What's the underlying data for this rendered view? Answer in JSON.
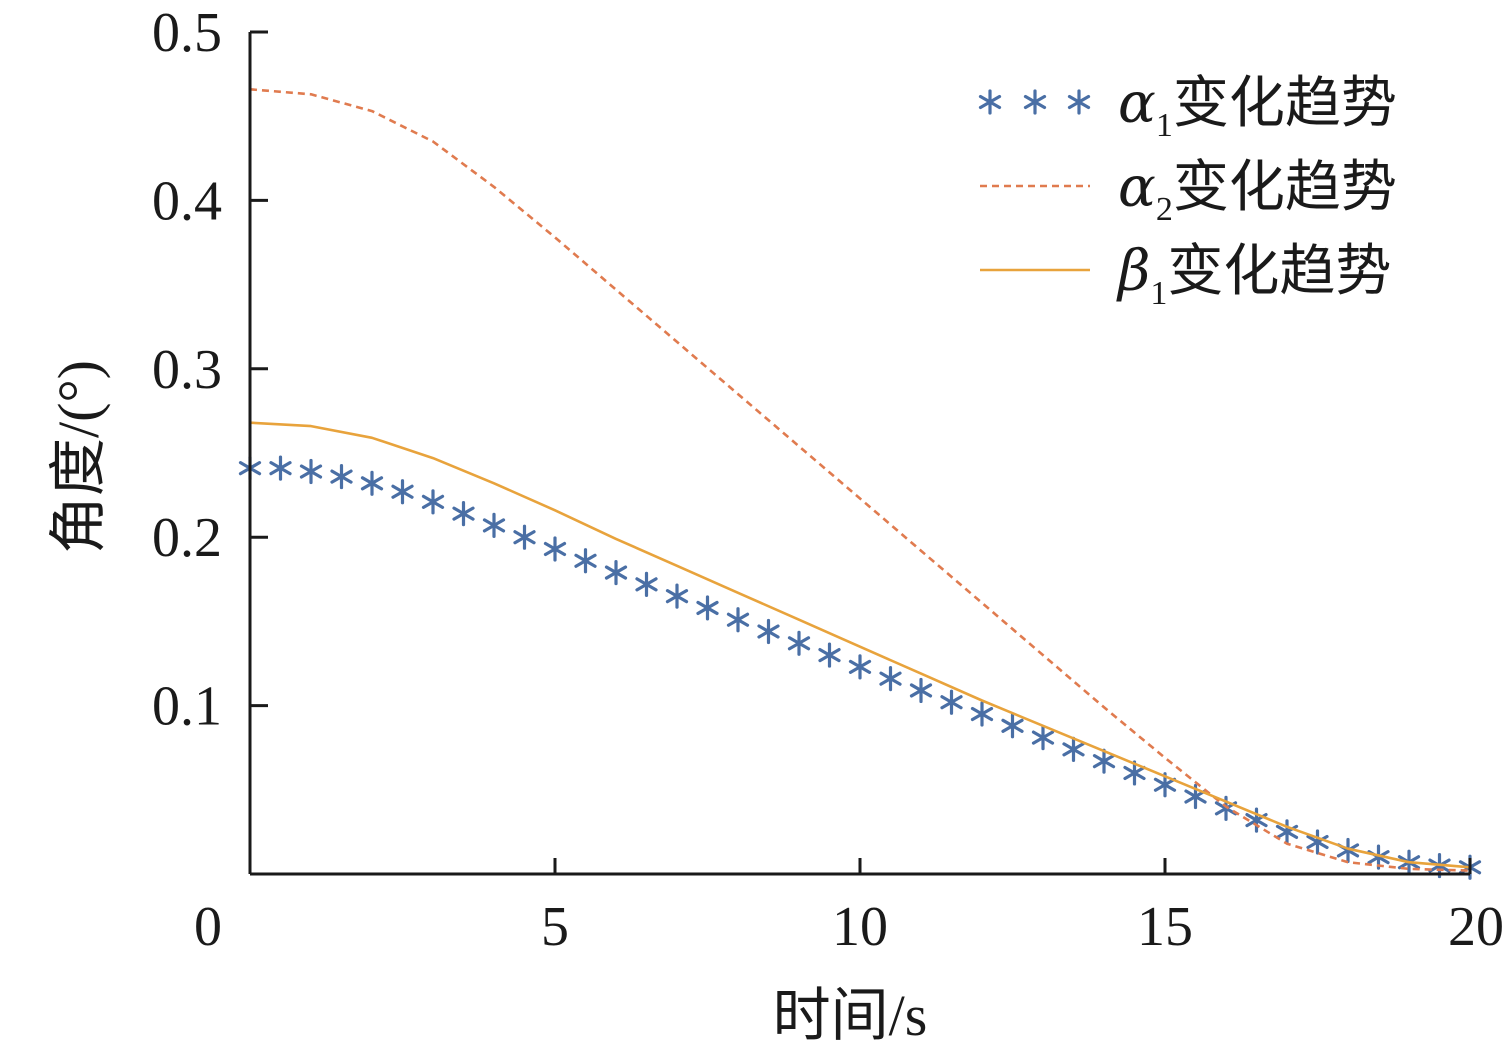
{
  "chart_data": {
    "type": "line",
    "xlabel": "时间/s",
    "ylabel": "角度/(°)",
    "xlim": [
      0,
      20
    ],
    "ylim": [
      0,
      0.5
    ],
    "xticks": [
      0,
      5,
      10,
      15,
      20
    ],
    "xtick_labels": [
      "0",
      "5",
      "10",
      "15",
      "20"
    ],
    "yticks": [
      0.1,
      0.2,
      0.3,
      0.4,
      0.5
    ],
    "ytick_labels": [
      "0.1",
      "0.2",
      "0.3",
      "0.4",
      "0.5"
    ],
    "grid": false,
    "legend_position": "top-right",
    "series": [
      {
        "key": "alpha1",
        "legend_symbol": "α",
        "legend_sub": "1",
        "legend_text": "变化趋势",
        "style": "markers-asterisk",
        "color": "#4a6fa5",
        "x": [
          0.0,
          0.5,
          1.0,
          1.5,
          2.0,
          2.5,
          3.0,
          3.5,
          4.0,
          4.5,
          5.0,
          5.5,
          6.0,
          6.5,
          7.0,
          7.5,
          8.0,
          8.5,
          9.0,
          9.5,
          10.0,
          10.5,
          11.0,
          11.5,
          12.0,
          12.5,
          13.0,
          13.5,
          14.0,
          14.5,
          15.0,
          15.5,
          16.0,
          16.5,
          17.0,
          17.5,
          18.0,
          18.5,
          19.0,
          19.5,
          20.0
        ],
        "y": [
          0.241,
          0.241,
          0.239,
          0.236,
          0.232,
          0.227,
          0.221,
          0.214,
          0.207,
          0.2,
          0.193,
          0.186,
          0.179,
          0.172,
          0.165,
          0.158,
          0.151,
          0.144,
          0.137,
          0.13,
          0.123,
          0.116,
          0.109,
          0.102,
          0.095,
          0.088,
          0.081,
          0.074,
          0.067,
          0.06,
          0.053,
          0.046,
          0.039,
          0.032,
          0.025,
          0.019,
          0.014,
          0.01,
          0.007,
          0.005,
          0.004
        ]
      },
      {
        "key": "alpha2",
        "legend_symbol": "α",
        "legend_sub": "2",
        "legend_text": "变化趋势",
        "style": "dashed",
        "color": "#e07b4f",
        "x": [
          0.0,
          1.0,
          2.0,
          3.0,
          4.0,
          5.0,
          6.0,
          7.0,
          8.0,
          9.0,
          10.0,
          11.0,
          12.0,
          13.0,
          14.0,
          15.0,
          16.0,
          17.0,
          18.0,
          19.0,
          20.0
        ],
        "y": [
          0.466,
          0.463,
          0.453,
          0.435,
          0.408,
          0.378,
          0.347,
          0.316,
          0.285,
          0.254,
          0.223,
          0.192,
          0.161,
          0.13,
          0.099,
          0.069,
          0.04,
          0.018,
          0.007,
          0.003,
          0.002
        ]
      },
      {
        "key": "beta1",
        "legend_symbol": "β",
        "legend_sub": "1",
        "legend_text": "变化趋势",
        "style": "solid",
        "color": "#e8a33c",
        "x": [
          0.0,
          1.0,
          2.0,
          3.0,
          4.0,
          5.0,
          6.0,
          7.0,
          8.0,
          9.0,
          10.0,
          11.0,
          12.0,
          13.0,
          14.0,
          15.0,
          16.0,
          17.0,
          18.0,
          19.0,
          20.0
        ],
        "y": [
          0.268,
          0.266,
          0.259,
          0.247,
          0.232,
          0.216,
          0.199,
          0.183,
          0.167,
          0.151,
          0.135,
          0.119,
          0.103,
          0.088,
          0.073,
          0.058,
          0.043,
          0.028,
          0.015,
          0.007,
          0.004
        ]
      }
    ]
  }
}
